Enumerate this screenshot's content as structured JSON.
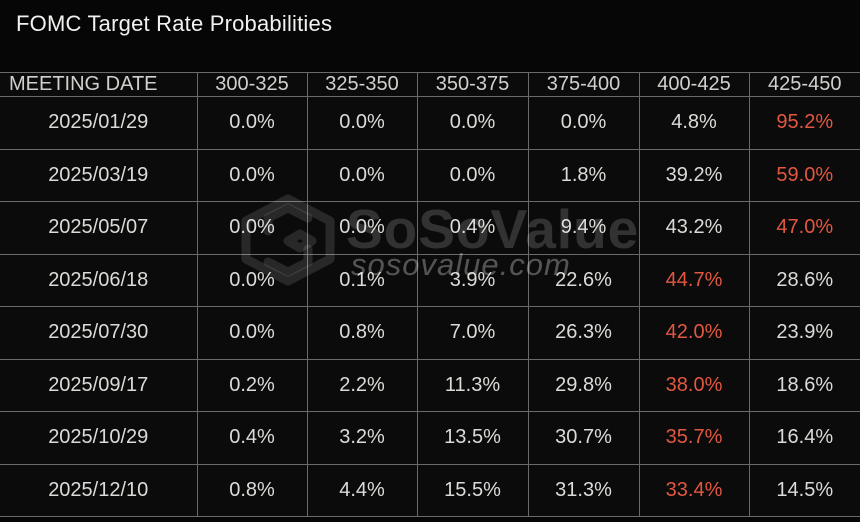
{
  "title": "FOMC Target Rate Probabilities",
  "watermark": {
    "brand": "SoSoValue",
    "domain": "sosovalue.com"
  },
  "colors": {
    "background": "#060606",
    "cell_background": "#0b0b0b",
    "grid": "#6a6a6a",
    "title_text": "#f2f1ef",
    "header_text": "#d2d0cd",
    "cell_text": "#dcdbd8",
    "highlight": "#e25740"
  },
  "chart_data": {
    "type": "table",
    "title": "FOMC Target Rate Probabilities",
    "columns": [
      "MEETING DATE",
      "300-325",
      "325-350",
      "350-375",
      "375-400",
      "400-425",
      "425-450"
    ],
    "rows": [
      {
        "date": "2025/01/29",
        "values": [
          "0.0%",
          "0.0%",
          "0.0%",
          "0.0%",
          "4.8%",
          "95.2%"
        ],
        "highlight_index": 5
      },
      {
        "date": "2025/03/19",
        "values": [
          "0.0%",
          "0.0%",
          "0.0%",
          "1.8%",
          "39.2%",
          "59.0%"
        ],
        "highlight_index": 5
      },
      {
        "date": "2025/05/07",
        "values": [
          "0.0%",
          "0.0%",
          "0.4%",
          "9.4%",
          "43.2%",
          "47.0%"
        ],
        "highlight_index": 5
      },
      {
        "date": "2025/06/18",
        "values": [
          "0.0%",
          "0.1%",
          "3.9%",
          "22.6%",
          "44.7%",
          "28.6%"
        ],
        "highlight_index": 4
      },
      {
        "date": "2025/07/30",
        "values": [
          "0.0%",
          "0.8%",
          "7.0%",
          "26.3%",
          "42.0%",
          "23.9%"
        ],
        "highlight_index": 4
      },
      {
        "date": "2025/09/17",
        "values": [
          "0.2%",
          "2.2%",
          "11.3%",
          "29.8%",
          "38.0%",
          "18.6%"
        ],
        "highlight_index": 4
      },
      {
        "date": "2025/10/29",
        "values": [
          "0.4%",
          "3.2%",
          "13.5%",
          "30.7%",
          "35.7%",
          "16.4%"
        ],
        "highlight_index": 4
      },
      {
        "date": "2025/12/10",
        "values": [
          "0.8%",
          "4.4%",
          "15.5%",
          "31.3%",
          "33.4%",
          "14.5%"
        ],
        "highlight_index": 4
      }
    ]
  }
}
